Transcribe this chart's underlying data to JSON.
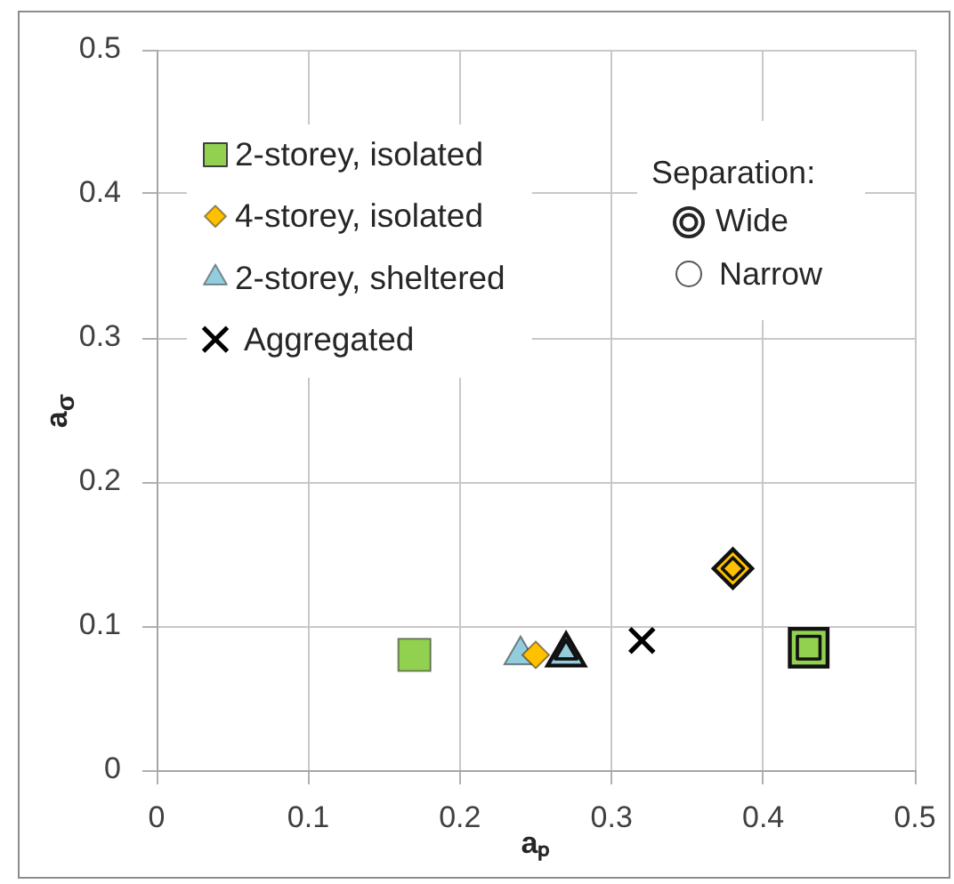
{
  "chart_data": {
    "type": "scatter",
    "xlabel": "aₚ",
    "ylabel": "a$_{σ}$",
    "xlim": [
      0,
      0.5
    ],
    "ylim": [
      0,
      0.5
    ],
    "xticks": [
      0,
      0.1,
      0.2,
      0.3,
      0.4,
      0.5
    ],
    "yticks": [
      0,
      0.1,
      0.2,
      0.3,
      0.4,
      0.5
    ],
    "grid": true,
    "legend": "top left",
    "annotations": [
      "Separation:",
      "Wide",
      "Narrow"
    ],
    "series": [
      {
        "name": "2-storey, isolated",
        "color": "#92d050",
        "marker": "square",
        "x": [
          0.17
        ],
        "values": [
          0.08
        ]
      },
      {
        "name": "4-storey, isolated",
        "color": "#ffc000",
        "marker": "diamond",
        "x": [
          0.25
        ],
        "values": [
          0.08
        ]
      },
      {
        "name": "2-storey, sheltered",
        "color": "#93cddd",
        "marker": "triangle",
        "x": [
          0.24
        ],
        "values": [
          0.08
        ]
      },
      {
        "name": "Aggregated",
        "color": "#000000",
        "marker": "cross",
        "x": [
          0.32
        ],
        "values": [
          0.09
        ]
      },
      {
        "color": "#92d050",
        "marker": "square",
        "x": [
          0.43
        ],
        "values": [
          0.085
        ]
      },
      {
        "color": "#ffc000",
        "marker": "diamond",
        "x": [
          0.38
        ],
        "values": [
          0.14
        ]
      },
      {
        "color": "#93cddd",
        "marker": "triangle",
        "x": [
          0.27
        ],
        "values": [
          0.08
        ]
      }
    ]
  }
}
